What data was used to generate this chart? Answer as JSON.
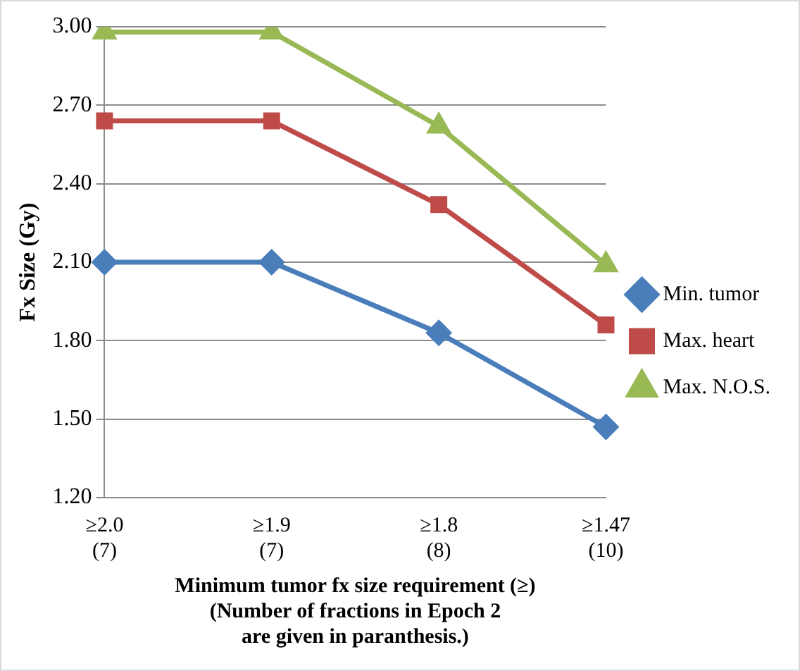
{
  "chart_data": {
    "type": "line",
    "ylabel": "Fx Size (Gy)",
    "xlabel": "Minimum tumor fx size requirement (≥)\n(Number of fractions in Epoch 2\nare given in paranthesis.)",
    "categories": [
      "≥2.0\n(7)",
      "≥1.9\n(7)",
      "≥1.8\n(8)",
      "≥1.47\n(10)"
    ],
    "series": [
      {
        "name": "Min. tumor",
        "color": "#4a7ebb",
        "marker": "diamond",
        "values": [
          2.1,
          2.1,
          1.83,
          1.47
        ]
      },
      {
        "name": "Max. heart",
        "color": "#be4b48",
        "marker": "square",
        "values": [
          2.64,
          2.64,
          2.32,
          1.86
        ]
      },
      {
        "name": "Max. N.O.S.",
        "color": "#98b954",
        "marker": "triangle",
        "values": [
          2.98,
          2.98,
          2.62,
          2.09
        ]
      }
    ],
    "ylim": [
      1.2,
      3.0
    ],
    "yticks": [
      {
        "value": 1.2,
        "label": "1.20"
      },
      {
        "value": 1.5,
        "label": "1.50"
      },
      {
        "value": 1.8,
        "label": "1.80"
      },
      {
        "value": 2.1,
        "label": "2.10"
      },
      {
        "value": 2.4,
        "label": "2.40"
      },
      {
        "value": 2.7,
        "label": "2.70"
      },
      {
        "value": 3.0,
        "label": "3.00"
      }
    ],
    "grid": "y",
    "legend": "right",
    "line_style": "solid"
  }
}
